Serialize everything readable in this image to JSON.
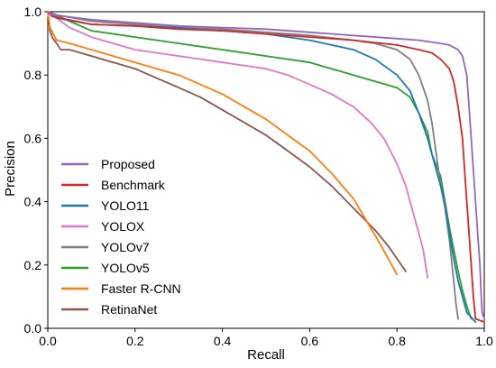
{
  "chart_data": {
    "type": "line",
    "title": "",
    "xlabel": "Recall",
    "ylabel": "Precision",
    "xlim": [
      0,
      1
    ],
    "ylim": [
      0,
      1
    ],
    "xticks": [
      "0.0",
      "0.2",
      "0.4",
      "0.6",
      "0.8",
      "1.0"
    ],
    "yticks": [
      "0.0",
      "0.2",
      "0.4",
      "0.6",
      "0.8",
      "1.0"
    ],
    "grid": false,
    "legend_position": "lower-left",
    "series": [
      {
        "name": "Proposed",
        "color": "#9467bd",
        "points": [
          [
            0,
            1
          ],
          [
            0.01,
            0.99
          ],
          [
            0.1,
            0.975
          ],
          [
            0.2,
            0.965
          ],
          [
            0.3,
            0.955
          ],
          [
            0.4,
            0.95
          ],
          [
            0.5,
            0.945
          ],
          [
            0.6,
            0.935
          ],
          [
            0.7,
            0.925
          ],
          [
            0.8,
            0.915
          ],
          [
            0.85,
            0.91
          ],
          [
            0.9,
            0.9
          ],
          [
            0.92,
            0.895
          ],
          [
            0.94,
            0.88
          ],
          [
            0.95,
            0.86
          ],
          [
            0.96,
            0.8
          ],
          [
            0.965,
            0.7
          ],
          [
            0.97,
            0.6
          ],
          [
            0.975,
            0.5
          ],
          [
            0.98,
            0.4
          ],
          [
            0.985,
            0.3
          ],
          [
            0.99,
            0.2
          ],
          [
            0.993,
            0.1
          ],
          [
            0.995,
            0.05
          ],
          [
            1.0,
            0.03
          ]
        ]
      },
      {
        "name": "Benchmark",
        "color": "#d62728",
        "points": [
          [
            0,
            1
          ],
          [
            0.01,
            0.985
          ],
          [
            0.1,
            0.96
          ],
          [
            0.2,
            0.955
          ],
          [
            0.3,
            0.945
          ],
          [
            0.4,
            0.94
          ],
          [
            0.5,
            0.93
          ],
          [
            0.6,
            0.92
          ],
          [
            0.7,
            0.91
          ],
          [
            0.8,
            0.895
          ],
          [
            0.85,
            0.88
          ],
          [
            0.88,
            0.87
          ],
          [
            0.9,
            0.85
          ],
          [
            0.92,
            0.82
          ],
          [
            0.93,
            0.78
          ],
          [
            0.94,
            0.7
          ],
          [
            0.95,
            0.6
          ],
          [
            0.955,
            0.5
          ],
          [
            0.96,
            0.4
          ],
          [
            0.965,
            0.3
          ],
          [
            0.97,
            0.2
          ],
          [
            0.975,
            0.1
          ],
          [
            0.98,
            0.03
          ],
          [
            1.0,
            0.02
          ]
        ]
      },
      {
        "name": "YOLO11",
        "color": "#1f77b4",
        "points": [
          [
            0,
            1
          ],
          [
            0.02,
            0.98
          ],
          [
            0.1,
            0.96
          ],
          [
            0.2,
            0.955
          ],
          [
            0.3,
            0.95
          ],
          [
            0.4,
            0.94
          ],
          [
            0.5,
            0.93
          ],
          [
            0.6,
            0.91
          ],
          [
            0.7,
            0.88
          ],
          [
            0.75,
            0.85
          ],
          [
            0.8,
            0.8
          ],
          [
            0.83,
            0.75
          ],
          [
            0.85,
            0.68
          ],
          [
            0.87,
            0.6
          ],
          [
            0.88,
            0.55
          ],
          [
            0.9,
            0.45
          ],
          [
            0.91,
            0.4
          ],
          [
            0.92,
            0.3
          ],
          [
            0.93,
            0.22
          ],
          [
            0.94,
            0.15
          ],
          [
            0.95,
            0.1
          ],
          [
            0.96,
            0.05
          ],
          [
            0.98,
            0.02
          ]
        ]
      },
      {
        "name": "YOLOX",
        "color": "#e377c2",
        "points": [
          [
            0,
            1
          ],
          [
            0.02,
            0.98
          ],
          [
            0.05,
            0.95
          ],
          [
            0.1,
            0.92
          ],
          [
            0.15,
            0.9
          ],
          [
            0.2,
            0.88
          ],
          [
            0.3,
            0.86
          ],
          [
            0.4,
            0.84
          ],
          [
            0.5,
            0.82
          ],
          [
            0.55,
            0.8
          ],
          [
            0.6,
            0.77
          ],
          [
            0.65,
            0.74
          ],
          [
            0.7,
            0.7
          ],
          [
            0.74,
            0.65
          ],
          [
            0.77,
            0.6
          ],
          [
            0.8,
            0.52
          ],
          [
            0.82,
            0.45
          ],
          [
            0.84,
            0.35
          ],
          [
            0.86,
            0.25
          ],
          [
            0.87,
            0.16
          ]
        ]
      },
      {
        "name": "YOLOv7",
        "color": "#7f7f7f",
        "points": [
          [
            0,
            1
          ],
          [
            0.02,
            0.99
          ],
          [
            0.1,
            0.97
          ],
          [
            0.2,
            0.96
          ],
          [
            0.3,
            0.955
          ],
          [
            0.4,
            0.945
          ],
          [
            0.5,
            0.935
          ],
          [
            0.6,
            0.925
          ],
          [
            0.7,
            0.91
          ],
          [
            0.75,
            0.9
          ],
          [
            0.8,
            0.88
          ],
          [
            0.83,
            0.85
          ],
          [
            0.85,
            0.8
          ],
          [
            0.87,
            0.72
          ],
          [
            0.88,
            0.65
          ],
          [
            0.89,
            0.55
          ],
          [
            0.9,
            0.45
          ],
          [
            0.91,
            0.38
          ],
          [
            0.92,
            0.28
          ],
          [
            0.93,
            0.15
          ],
          [
            0.935,
            0.08
          ],
          [
            0.94,
            0.03
          ]
        ]
      },
      {
        "name": "YOLOv5",
        "color": "#2ca02c",
        "points": [
          [
            0,
            1
          ],
          [
            0.05,
            0.97
          ],
          [
            0.1,
            0.94
          ],
          [
            0.2,
            0.92
          ],
          [
            0.3,
            0.9
          ],
          [
            0.4,
            0.88
          ],
          [
            0.5,
            0.86
          ],
          [
            0.6,
            0.84
          ],
          [
            0.65,
            0.82
          ],
          [
            0.7,
            0.8
          ],
          [
            0.75,
            0.78
          ],
          [
            0.8,
            0.76
          ],
          [
            0.83,
            0.73
          ],
          [
            0.85,
            0.68
          ],
          [
            0.87,
            0.62
          ],
          [
            0.88,
            0.55
          ],
          [
            0.9,
            0.48
          ],
          [
            0.91,
            0.4
          ],
          [
            0.92,
            0.32
          ],
          [
            0.93,
            0.25
          ],
          [
            0.94,
            0.18
          ],
          [
            0.95,
            0.12
          ],
          [
            0.96,
            0.07
          ],
          [
            0.97,
            0.03
          ]
        ]
      },
      {
        "name": "Faster R-CNN",
        "color": "#ff7f0e",
        "points": [
          [
            0,
            1
          ],
          [
            0.005,
            0.95
          ],
          [
            0.02,
            0.91
          ],
          [
            0.05,
            0.9
          ],
          [
            0.1,
            0.88
          ],
          [
            0.15,
            0.86
          ],
          [
            0.2,
            0.84
          ],
          [
            0.25,
            0.82
          ],
          [
            0.3,
            0.8
          ],
          [
            0.35,
            0.77
          ],
          [
            0.4,
            0.74
          ],
          [
            0.45,
            0.7
          ],
          [
            0.5,
            0.66
          ],
          [
            0.55,
            0.61
          ],
          [
            0.6,
            0.56
          ],
          [
            0.65,
            0.49
          ],
          [
            0.7,
            0.41
          ],
          [
            0.73,
            0.34
          ],
          [
            0.76,
            0.27
          ],
          [
            0.78,
            0.22
          ],
          [
            0.8,
            0.17
          ]
        ]
      },
      {
        "name": "RetinaNet",
        "color": "#8c564b",
        "points": [
          [
            0,
            1
          ],
          [
            0.005,
            0.94
          ],
          [
            0.01,
            0.92
          ],
          [
            0.03,
            0.88
          ],
          [
            0.05,
            0.88
          ],
          [
            0.1,
            0.86
          ],
          [
            0.15,
            0.84
          ],
          [
            0.2,
            0.82
          ],
          [
            0.25,
            0.79
          ],
          [
            0.3,
            0.76
          ],
          [
            0.35,
            0.73
          ],
          [
            0.4,
            0.69
          ],
          [
            0.45,
            0.65
          ],
          [
            0.5,
            0.61
          ],
          [
            0.55,
            0.56
          ],
          [
            0.6,
            0.51
          ],
          [
            0.65,
            0.45
          ],
          [
            0.7,
            0.38
          ],
          [
            0.75,
            0.31
          ],
          [
            0.78,
            0.26
          ],
          [
            0.8,
            0.22
          ],
          [
            0.82,
            0.18
          ]
        ]
      }
    ]
  }
}
